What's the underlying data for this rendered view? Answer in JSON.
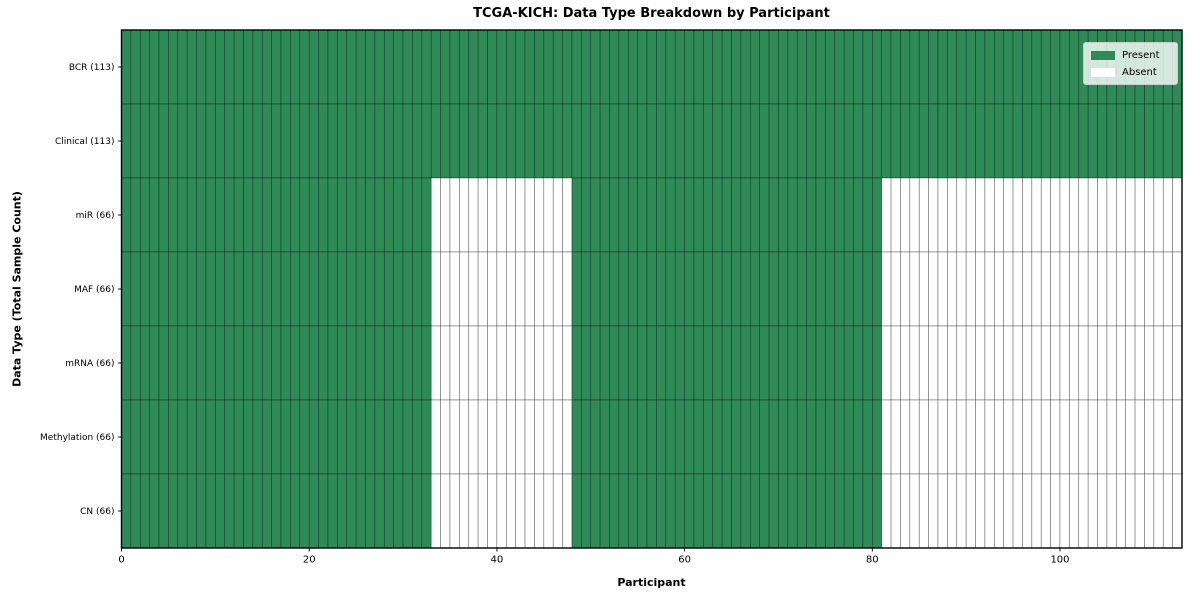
{
  "chart_data": {
    "type": "heatmap",
    "title": "TCGA-KICH: Data Type Breakdown by Participant",
    "xlabel": "Participant",
    "ylabel": "Data Type (Total Sample Count)",
    "n_participants": 113,
    "xlim": [
      0,
      113
    ],
    "xticks": [
      0,
      20,
      40,
      60,
      80,
      100
    ],
    "grid": "per-cell-borders",
    "colors": {
      "present": "#2e8b57",
      "absent": "#ffffff",
      "cell_edge": "rgba(0,0,0,0.5)",
      "frame": "#000000",
      "tick": "#000000"
    },
    "legend": {
      "position": "upper-right",
      "entries": [
        {
          "label": "Present",
          "color": "#2e8b57"
        },
        {
          "label": "Absent",
          "color": "#ffffff"
        }
      ]
    },
    "rows": [
      {
        "label": "BCR (113)",
        "data_type": "BCR",
        "total_samples": 113,
        "present_ranges": [
          [
            0,
            113
          ]
        ]
      },
      {
        "label": "Clinical (113)",
        "data_type": "Clinical",
        "total_samples": 113,
        "present_ranges": [
          [
            0,
            113
          ]
        ]
      },
      {
        "label": "miR (66)",
        "data_type": "miR",
        "total_samples": 66,
        "present_ranges": [
          [
            0,
            33
          ],
          [
            48,
            81
          ]
        ]
      },
      {
        "label": "MAF (66)",
        "data_type": "MAF",
        "total_samples": 66,
        "present_ranges": [
          [
            0,
            33
          ],
          [
            48,
            81
          ]
        ]
      },
      {
        "label": "mRNA (66)",
        "data_type": "mRNA",
        "total_samples": 66,
        "present_ranges": [
          [
            0,
            33
          ],
          [
            48,
            81
          ]
        ]
      },
      {
        "label": "Methylation (66)",
        "data_type": "Methylation",
        "total_samples": 66,
        "present_ranges": [
          [
            0,
            33
          ],
          [
            48,
            81
          ]
        ]
      },
      {
        "label": "CN (66)",
        "data_type": "CN",
        "total_samples": 66,
        "present_ranges": [
          [
            0,
            33
          ],
          [
            48,
            81
          ]
        ]
      }
    ]
  }
}
